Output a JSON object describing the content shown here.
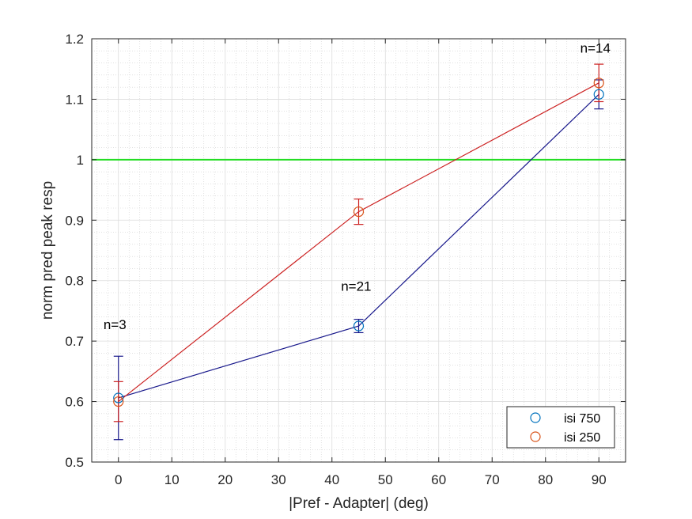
{
  "chart_data": {
    "type": "line",
    "title": "",
    "xlabel": "|Pref - Adapter| (deg)",
    "ylabel": "norm pred peak resp",
    "xlim": [
      -5,
      95
    ],
    "ylim": [
      0.5,
      1.2
    ],
    "xticks": [
      "0",
      "10",
      "20",
      "30",
      "40",
      "50",
      "60",
      "70",
      "80",
      "90"
    ],
    "yticks": [
      "0.5",
      "0.6",
      "0.7",
      "0.8",
      "0.9",
      "1",
      "1.1",
      "1.2"
    ],
    "grid": true,
    "minor_grid": true,
    "reference_line": {
      "y": 1.0,
      "color": "#22dd22"
    },
    "series": [
      {
        "name": "isi 750",
        "line_color": "#1a1a8c",
        "marker_color": "#0072bd",
        "x": [
          0,
          45,
          90
        ],
        "y": [
          0.606,
          0.725,
          1.108
        ],
        "err": [
          0.069,
          0.011,
          0.024
        ]
      },
      {
        "name": "isi 250",
        "line_color": "#cc2222",
        "marker_color": "#d95319",
        "x": [
          0,
          45,
          90
        ],
        "y": [
          0.6,
          0.914,
          1.127
        ],
        "err": [
          0.033,
          0.021,
          0.031
        ]
      }
    ],
    "annotations": [
      {
        "text": "n=3",
        "x": -2.8,
        "y": 0.72
      },
      {
        "text": "n=21",
        "x": 41.7,
        "y": 0.783
      },
      {
        "text": "n=14",
        "x": 86.5,
        "y": 1.177
      }
    ],
    "legend_position": "bottom-right"
  }
}
